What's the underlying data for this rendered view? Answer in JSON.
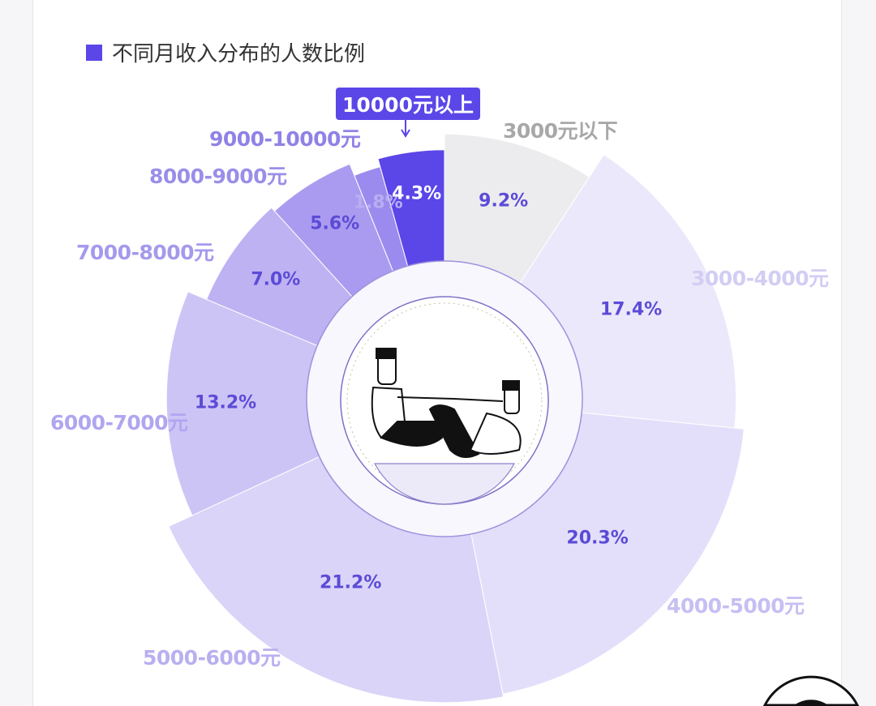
{
  "chart_data": {
    "type": "rose",
    "legend": "不同月收入分布的人数比例",
    "legend_color": "#5b46e8",
    "callout": "10000元以上",
    "categories": [
      "3000元以下",
      "3000-4000元",
      "4000-5000元",
      "5000-6000元",
      "6000-7000元",
      "7000-8000元",
      "8000-9000元",
      "9000-10000元",
      "10000元以上"
    ],
    "values": [
      9.2,
      17.4,
      20.3,
      21.2,
      13.2,
      7.0,
      5.6,
      1.8,
      4.3
    ],
    "value_labels": [
      "9.2%",
      "17.4%",
      "20.3%",
      "21.2%",
      "13.2%",
      "7.0%",
      "5.6%",
      "1.8%",
      "4.3%"
    ],
    "colors": [
      "#ececef",
      "#ebe8fb",
      "#e3dffa",
      "#dad4f8",
      "#cdc4f6",
      "#beb2f3",
      "#aa9bf0",
      "#9c8bee",
      "#5b46e8"
    ],
    "label_colors": [
      "#a8a8a8",
      "#d2cdf3",
      "#c6bff2",
      "#b9b0f0",
      "#b0a6ef",
      "#a49aec",
      "#9a8ee9",
      "#8f82e6",
      "#5b46e8"
    ],
    "unit": "%"
  }
}
